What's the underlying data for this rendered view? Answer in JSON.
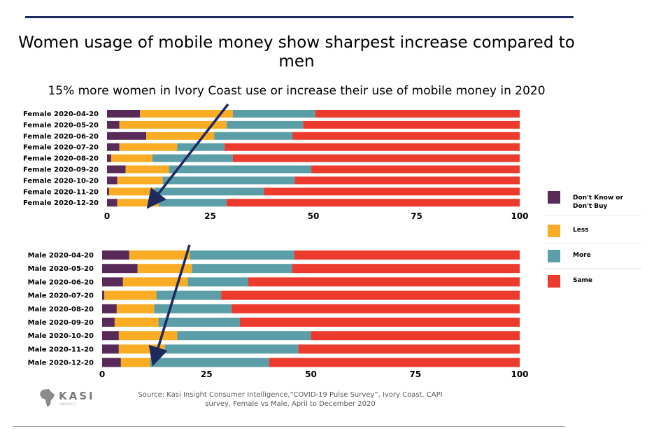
{
  "title": "Women usage of mobile money show sharpest increase compared to men",
  "subtitle": "15% more women in Ivory Coast use or increase their use of mobile money in 2020",
  "source": "Source: Kasi Insight Consumer Intelligence,“COVID-19 Pulse Survey”, Ivory Coast. CAPI survey, Female vs Male, April to December 2020",
  "logo": {
    "name": "KASI",
    "sub": "INSIGHT"
  },
  "colors": {
    "dont_know": "#582a5a",
    "less": "#f9ac24",
    "more": "#5b9ea8",
    "same": "#ec3b2c",
    "arrow": "#1d2a5e"
  },
  "legend": [
    {
      "label": "Don't Know or Don't Buy",
      "key": "dont_know"
    },
    {
      "label": "Less",
      "key": "less"
    },
    {
      "label": "More",
      "key": "more"
    },
    {
      "label": "Same",
      "key": "same"
    }
  ],
  "chart_data": [
    {
      "type": "bar",
      "orientation": "horizontal",
      "stacked": true,
      "title": "Female",
      "categories": [
        "Female 2020-04-20",
        "Female 2020-05-20",
        "Female 2020-06-20",
        "Female 2020-07-20",
        "Female 2020-08-20",
        "Female 2020-09-20",
        "Female 2020-10-20",
        "Female 2020-11-20",
        "Female 2020-12-20"
      ],
      "series": [
        {
          "name": "Don't Know or Don't Buy",
          "key": "dont_know",
          "values": [
            8,
            3,
            9.5,
            3,
            1,
            4.5,
            2.5,
            0.5,
            2.5
          ]
        },
        {
          "name": "Less",
          "key": "less",
          "values": [
            22.5,
            26,
            16.5,
            14,
            10,
            10.5,
            11,
            11,
            10
          ]
        },
        {
          "name": "More",
          "key": "more",
          "values": [
            20,
            18.5,
            19,
            11.5,
            19.5,
            34.5,
            32,
            26.5,
            16.5
          ]
        },
        {
          "name": "Same",
          "key": "same",
          "values": [
            49.5,
            52.5,
            55,
            71.5,
            69.5,
            50.5,
            54.5,
            62,
            71
          ]
        }
      ],
      "xticks": [
        0,
        25,
        50,
        75,
        100
      ],
      "xlim": [
        0,
        100
      ]
    },
    {
      "type": "bar",
      "orientation": "horizontal",
      "stacked": true,
      "title": "Male",
      "categories": [
        "Male 2020-04-20",
        "Male 2020-05-20",
        "Male 2020-06-20",
        "Male 2020-07-20",
        "Male 2020-08-20",
        "Male 2020-09-20",
        "Male 2020-10-20",
        "Male 2020-11-20",
        "Male 2020-12-20"
      ],
      "series": [
        {
          "name": "Don't Know or Don't Buy",
          "key": "dont_know",
          "values": [
            6.5,
            8.5,
            5,
            0.5,
            3.5,
            3,
            4,
            4,
            4.5
          ]
        },
        {
          "name": "Less",
          "key": "less",
          "values": [
            14.5,
            13,
            15.5,
            12.5,
            9,
            10.5,
            14,
            11,
            7
          ]
        },
        {
          "name": "More",
          "key": "more",
          "values": [
            25,
            24,
            14.5,
            15.5,
            18.5,
            19.5,
            32,
            32,
            28.5
          ]
        },
        {
          "name": "Same",
          "key": "same",
          "values": [
            54,
            54.5,
            65,
            71.5,
            69,
            67,
            50,
            53,
            60
          ]
        }
      ],
      "xticks": [
        0,
        25,
        50,
        75,
        100
      ],
      "xlim": [
        0,
        100
      ]
    }
  ]
}
